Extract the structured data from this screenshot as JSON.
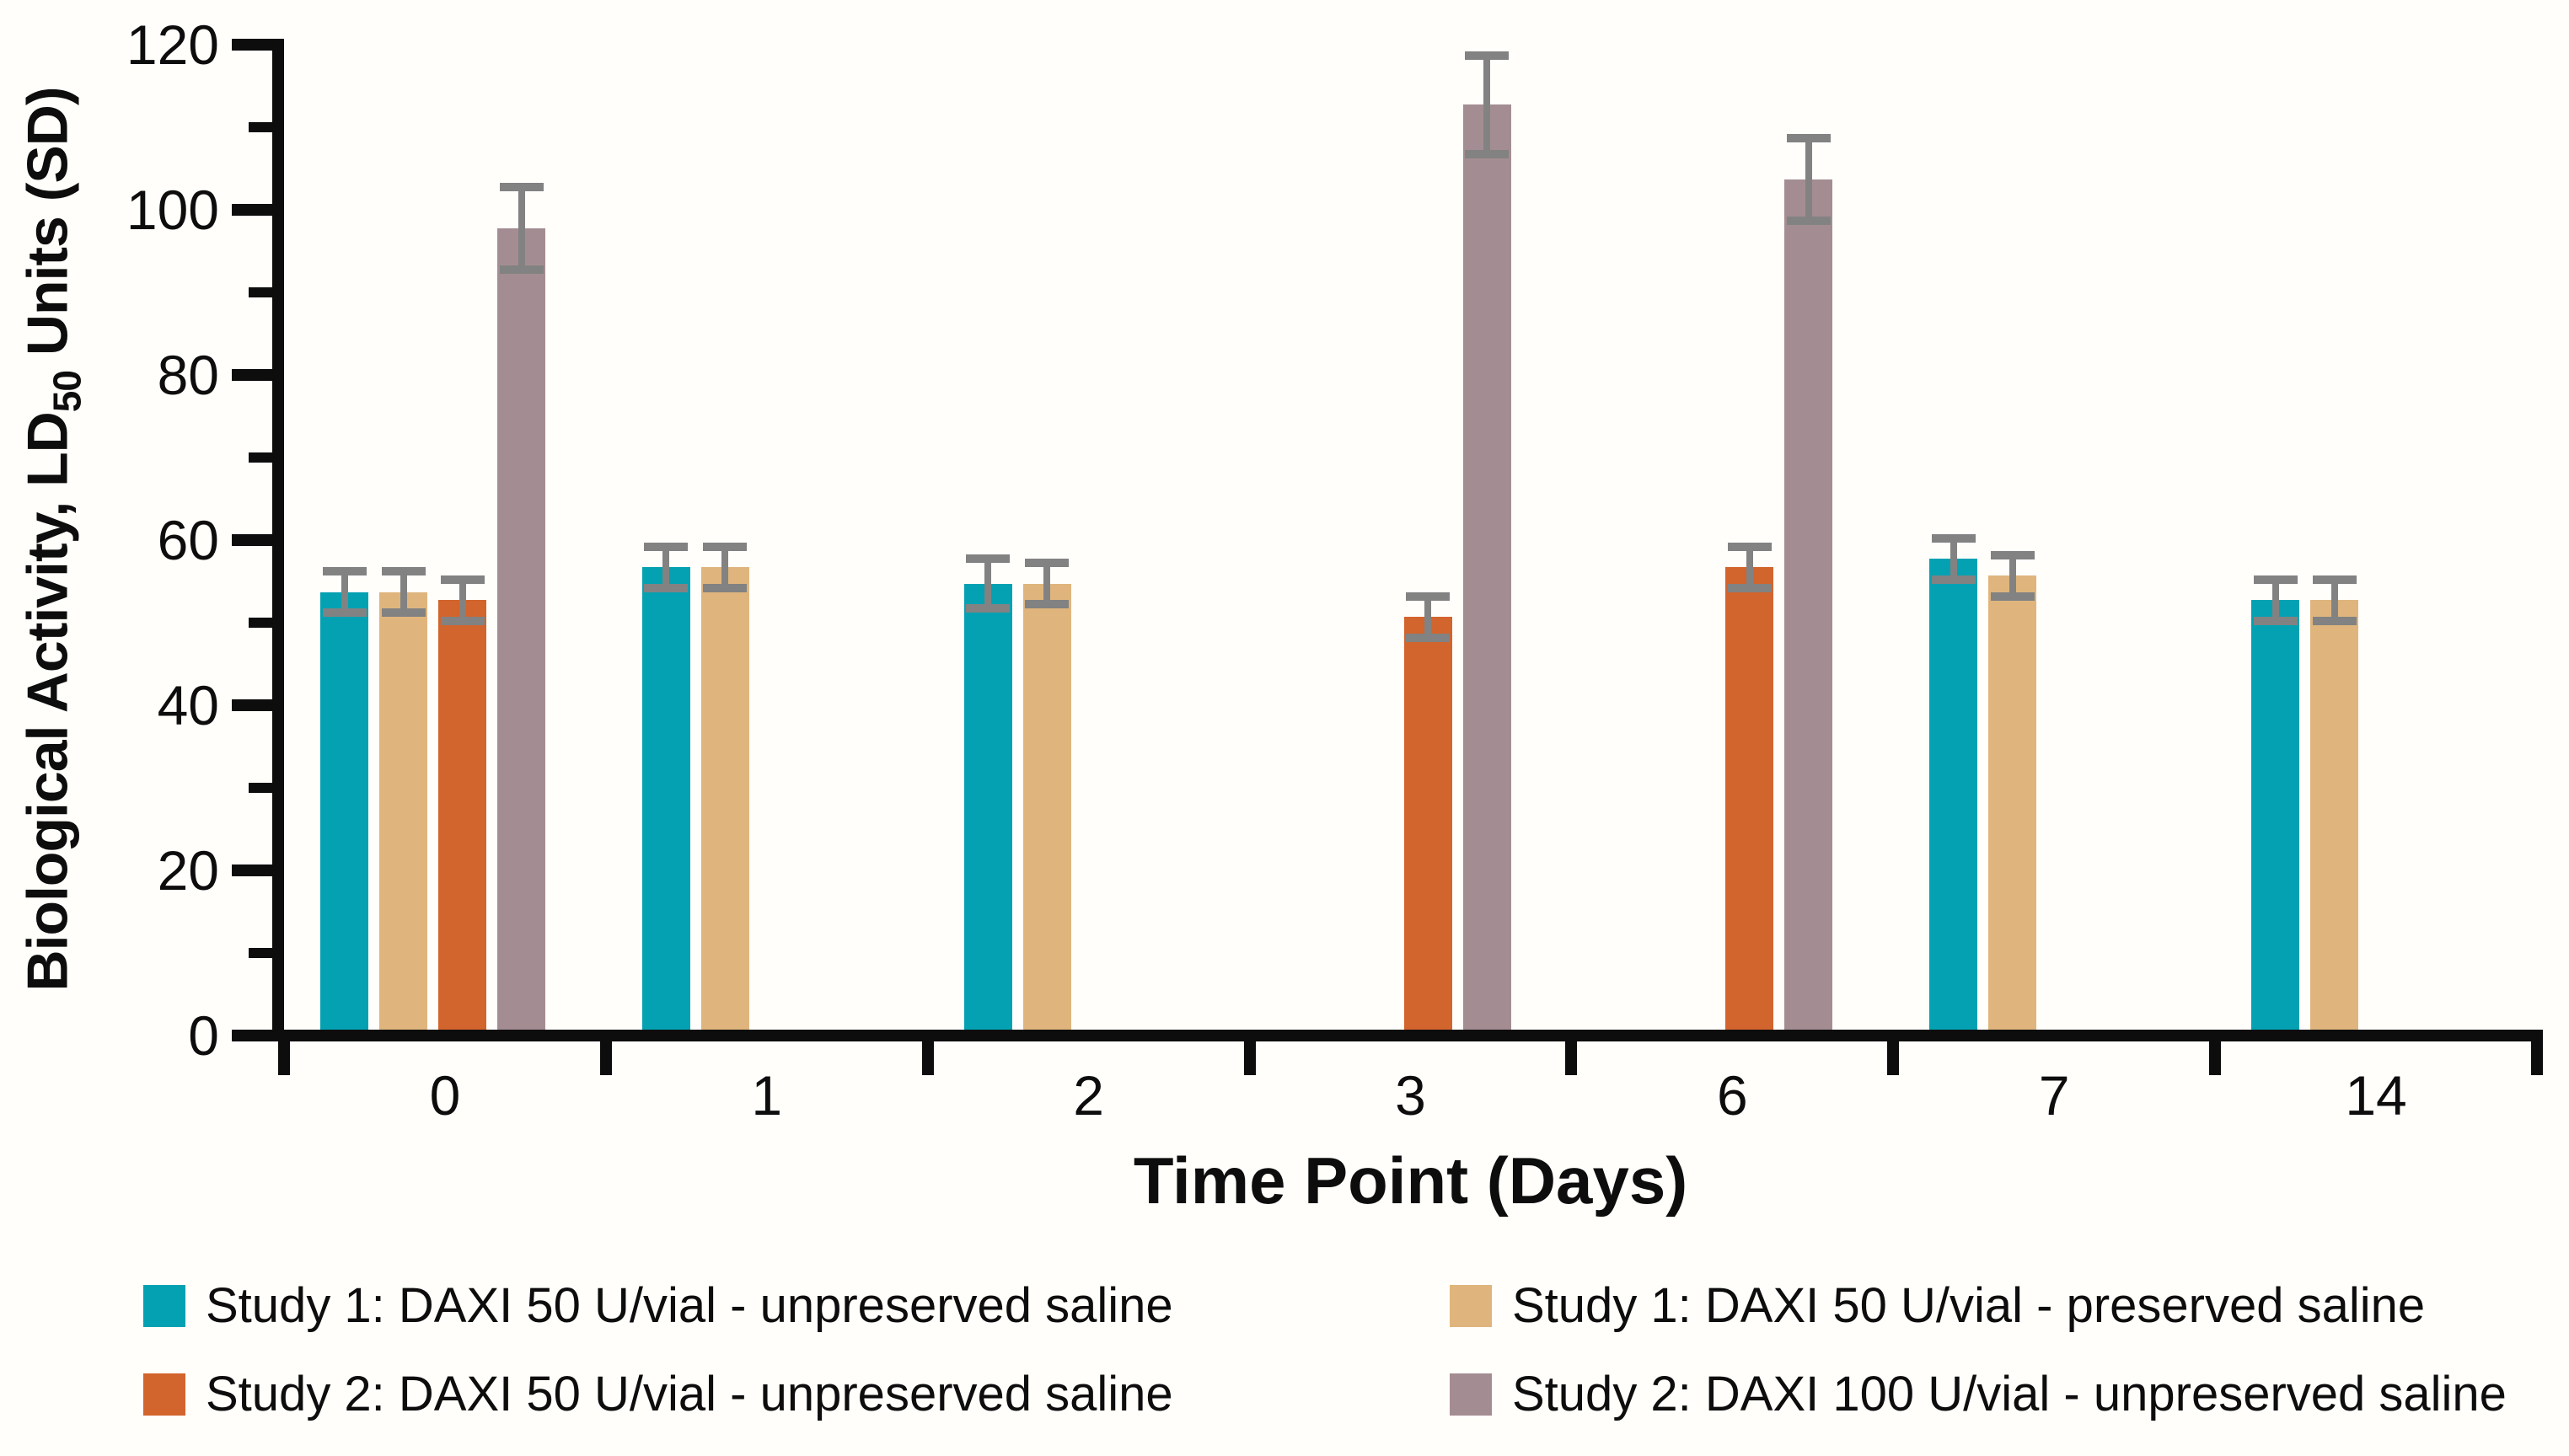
{
  "chart_data": {
    "type": "bar",
    "title": "",
    "xlabel": "Time Point (Days)",
    "ylabel": "Biological Activity, LD50 Units (SD)",
    "ylabel_parts": {
      "pre": "Biological Activity, LD",
      "sub": "50",
      "post": " Units (SD)"
    },
    "ylim": [
      0,
      120
    ],
    "y_major_ticks": [
      0,
      20,
      40,
      60,
      80,
      100,
      120
    ],
    "y_minor_ticks": [
      10,
      30,
      50,
      70,
      90,
      110
    ],
    "categories": [
      "0",
      "1",
      "2",
      "3",
      "6",
      "7",
      "14"
    ],
    "series": [
      {
        "name": "Study 1: DAXI 50 U/vial - unpreserved saline",
        "color": "#04a1b2",
        "slot": 0,
        "values": [
          53,
          56,
          54,
          null,
          null,
          57,
          52
        ],
        "sd": [
          2.5,
          2.5,
          3,
          null,
          null,
          2.5,
          2.5
        ]
      },
      {
        "name": "Study 1: DAXI 50 U/vial - preserved saline",
        "color": "#dfb57d",
        "slot": 1,
        "values": [
          53,
          56,
          54,
          null,
          null,
          55,
          52
        ],
        "sd": [
          2.5,
          2.5,
          2.5,
          null,
          null,
          2.5,
          2.5
        ]
      },
      {
        "name": "Study 2: DAXI 50 U/vial - unpreserved saline",
        "color": "#d2642d",
        "slot": 2,
        "values": [
          52,
          null,
          null,
          50,
          56,
          null,
          null
        ],
        "sd": [
          2.5,
          null,
          null,
          2.5,
          2.5,
          null,
          null
        ]
      },
      {
        "name": "Study 2: DAXI 100 U/vial - unpreserved saline",
        "color": "#a48d92",
        "slot": 3,
        "values": [
          97,
          null,
          null,
          112,
          103,
          null,
          null
        ],
        "sd": [
          5,
          null,
          null,
          6,
          5,
          null,
          null
        ]
      }
    ],
    "error_bar_color": "#828282",
    "axis_color": "#0d0d0d",
    "background_color": "#fffefb",
    "grid": false,
    "legend_position": "bottom"
  }
}
